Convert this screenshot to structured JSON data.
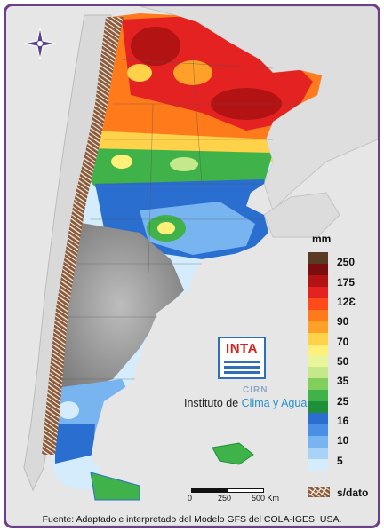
{
  "legend": {
    "title": "mm",
    "classes": [
      {
        "label": "250",
        "color": "#5a3a22"
      },
      {
        "label": "",
        "color": "#7a0d0d"
      },
      {
        "label": "175",
        "color": "#b31313"
      },
      {
        "label": "",
        "color": "#e52222"
      },
      {
        "label": "12Ɛ",
        "color": "#ff4a1a"
      },
      {
        "label": "",
        "color": "#ff7a1a"
      },
      {
        "label": "90",
        "color": "#ffa128"
      },
      {
        "label": "",
        "color": "#ffd24a"
      },
      {
        "label": "70",
        "color": "#fff07a"
      },
      {
        "label": "",
        "color": "#e9f59a"
      },
      {
        "label": "50",
        "color": "#c5e98a"
      },
      {
        "label": "",
        "color": "#7fcf5a"
      }
    ],
    "lower_classes": [
      {
        "label": "35",
        "color": "#3fb24a"
      },
      {
        "label": "",
        "color": "#1f8f3a"
      },
      {
        "label": "25",
        "color": "#2a6fd0"
      },
      {
        "label": "",
        "color": "#4a8fe6"
      },
      {
        "label": "16",
        "color": "#78b4f0"
      },
      {
        "label": "10",
        "color": "#a9d2f7"
      },
      {
        "label": "5",
        "color": "#d4ecfb"
      }
    ],
    "tick_labels": [
      "250",
      "175",
      "12Ɛ",
      "90",
      "70",
      "50",
      "35",
      "25",
      "16",
      "10",
      "5"
    ],
    "no_data_label": "s/dato",
    "no_data_color": "#8a5a3a"
  },
  "logo": {
    "inta": "INTA",
    "cirn": "CIRN",
    "institute_prefix": "Instituto de ",
    "institute_accent": "Clima y Agua"
  },
  "scale_bar": {
    "labels": [
      "0",
      "250",
      "500 Km"
    ]
  },
  "source": "Fuente: Adaptado e interpretado del Modelo GFS del COLA-IGES, USA.",
  "icons": {
    "compass": "compass-rose-icon",
    "no_data": "no-data-hatch-icon"
  },
  "map_palette": {
    "ocean": "#e6e6e6",
    "chile": "#d9d9d9",
    "andes_relief": "#9c9c9c",
    "no_data_brown": "#8a5a3a"
  }
}
